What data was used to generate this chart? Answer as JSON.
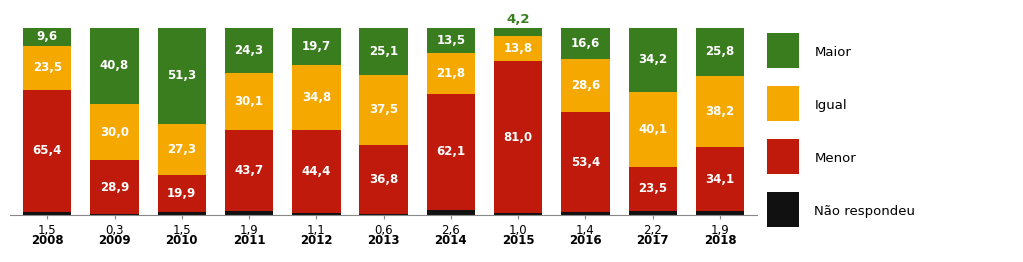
{
  "years": [
    "2008",
    "2009",
    "2010",
    "2011",
    "2012",
    "2013",
    "2014",
    "2015",
    "2016",
    "2017",
    "2018"
  ],
  "nao_respondeu_labels": [
    "1,5",
    "0,3",
    "1,5",
    "1,9",
    "1,1",
    "0,6",
    "2,6",
    "1,0",
    "1,4",
    "2,2",
    "1,9"
  ],
  "menor": [
    65.4,
    28.9,
    19.9,
    43.7,
    44.4,
    36.8,
    62.1,
    81.0,
    53.4,
    23.5,
    34.1
  ],
  "igual": [
    23.5,
    30.0,
    27.3,
    30.1,
    34.8,
    37.5,
    21.8,
    13.8,
    28.6,
    40.1,
    38.2
  ],
  "maior": [
    9.6,
    40.8,
    51.3,
    24.3,
    19.7,
    25.1,
    13.5,
    4.2,
    16.6,
    34.2,
    25.8
  ],
  "nao_respondeu": [
    1.5,
    0.3,
    1.5,
    1.9,
    1.1,
    0.6,
    2.6,
    1.0,
    1.4,
    2.2,
    1.9
  ],
  "menor_labels": [
    "65,4",
    "28,9",
    "19,9",
    "43,7",
    "44,4",
    "36,8",
    "62,1",
    "81,0",
    "53,4",
    "23,5",
    "34,1"
  ],
  "igual_labels": [
    "23,5",
    "30,0",
    "27,3",
    "30,1",
    "34,8",
    "37,5",
    "21,8",
    "13,8",
    "28,6",
    "40,1",
    "38,2"
  ],
  "maior_labels": [
    "9,6",
    "40,8",
    "51,3",
    "24,3",
    "19,7",
    "25,1",
    "13,5",
    "4,2",
    "16,6",
    "34,2",
    "25,8"
  ],
  "color_maior": "#3a7d1e",
  "color_igual": "#f5a800",
  "color_menor": "#bf1a0b",
  "color_nao": "#111111",
  "highlight_year_idx": 7,
  "highlight_color": "#3a7d1e",
  "bar_width": 0.72,
  "bg_color": "#ffffff",
  "legend_labels": [
    "Maior",
    "Igual",
    "Menor",
    "Não respondeu"
  ],
  "fontsize_bar": 8.5,
  "fontsize_axis": 8.5,
  "fontsize_highlight": 9.5
}
